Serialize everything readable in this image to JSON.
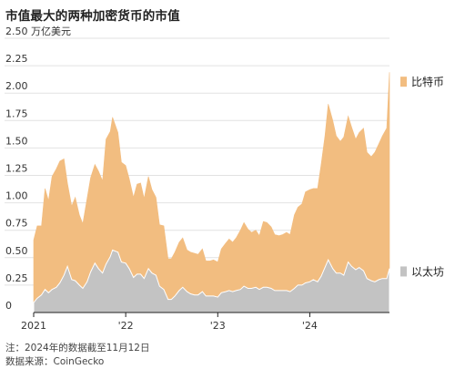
{
  "title": "市值最大的两种加密货币的市值",
  "note": "注：2024年的数据截至11月12日",
  "source": "数据来源：CoinGecko",
  "chart_data": {
    "type": "area",
    "stacked": true,
    "title": "市值最大的两种加密货币的市值",
    "y_unit_label": "2.50 万亿美元",
    "ylim": [
      0,
      2.5
    ],
    "y_ticks": [
      {
        "value": 0,
        "label": "0"
      },
      {
        "value": 0.25,
        "label": "0.25"
      },
      {
        "value": 0.5,
        "label": "0.50"
      },
      {
        "value": 0.75,
        "label": "0.75"
      },
      {
        "value": 1.0,
        "label": "1.00"
      },
      {
        "value": 1.25,
        "label": "1.25"
      },
      {
        "value": 1.5,
        "label": "1.50"
      },
      {
        "value": 1.75,
        "label": "1.75"
      },
      {
        "value": 2.0,
        "label": "2.00"
      },
      {
        "value": 2.25,
        "label": "2.25"
      },
      {
        "value": 2.5,
        "label": "2.50"
      }
    ],
    "x_ticks": [
      {
        "value": "2021-01-01",
        "label": "2021"
      },
      {
        "value": "2022-01-01",
        "label": "'22"
      },
      {
        "value": "2023-01-01",
        "label": "'23"
      },
      {
        "value": "2024-01-01",
        "label": "'24"
      }
    ],
    "xlim": [
      "2021-01-01",
      "2024-11-12"
    ],
    "grid": true,
    "legend": "right, labels at series",
    "colors": {
      "bitcoin": "#f2bd80",
      "ethereum": "#c3c3c3",
      "baseline": "#222222",
      "grid": "#e2e2e2"
    },
    "x": [
      "2021-01-01",
      "2021-01-15",
      "2021-02-01",
      "2021-02-15",
      "2021-03-01",
      "2021-03-15",
      "2021-04-01",
      "2021-04-15",
      "2021-05-01",
      "2021-05-15",
      "2021-06-01",
      "2021-06-15",
      "2021-07-01",
      "2021-07-15",
      "2021-08-01",
      "2021-08-15",
      "2021-09-01",
      "2021-09-15",
      "2021-10-01",
      "2021-10-15",
      "2021-11-01",
      "2021-11-10",
      "2021-12-01",
      "2021-12-15",
      "2022-01-01",
      "2022-01-15",
      "2022-02-01",
      "2022-02-15",
      "2022-03-01",
      "2022-03-15",
      "2022-04-01",
      "2022-04-15",
      "2022-05-01",
      "2022-05-15",
      "2022-06-01",
      "2022-06-18",
      "2022-07-01",
      "2022-07-15",
      "2022-08-01",
      "2022-08-15",
      "2022-09-01",
      "2022-09-15",
      "2022-10-01",
      "2022-10-15",
      "2022-11-01",
      "2022-11-15",
      "2022-12-01",
      "2022-12-15",
      "2023-01-01",
      "2023-01-15",
      "2023-02-01",
      "2023-02-15",
      "2023-03-01",
      "2023-03-15",
      "2023-04-01",
      "2023-04-15",
      "2023-05-01",
      "2023-05-15",
      "2023-06-01",
      "2023-06-15",
      "2023-07-01",
      "2023-07-15",
      "2023-08-01",
      "2023-08-15",
      "2023-09-01",
      "2023-09-15",
      "2023-10-01",
      "2023-10-15",
      "2023-11-01",
      "2023-11-15",
      "2023-12-01",
      "2023-12-15",
      "2024-01-01",
      "2024-01-15",
      "2024-02-01",
      "2024-02-15",
      "2024-03-01",
      "2024-03-14",
      "2024-04-01",
      "2024-04-15",
      "2024-05-01",
      "2024-05-15",
      "2024-06-01",
      "2024-06-15",
      "2024-07-01",
      "2024-07-15",
      "2024-08-01",
      "2024-08-15",
      "2024-09-01",
      "2024-09-15",
      "2024-10-01",
      "2024-10-15",
      "2024-11-01",
      "2024-11-12"
    ],
    "series": [
      {
        "name": "比特币",
        "values": [
          0.57,
          0.66,
          0.63,
          0.92,
          0.84,
          1.03,
          1.08,
          1.11,
          1.06,
          0.76,
          0.67,
          0.76,
          0.64,
          0.59,
          0.76,
          0.86,
          0.9,
          0.89,
          0.84,
          1.14,
          1.14,
          1.21,
          1.09,
          0.91,
          0.89,
          0.82,
          0.73,
          0.82,
          0.83,
          0.73,
          0.84,
          0.76,
          0.71,
          0.56,
          0.58,
          0.37,
          0.37,
          0.4,
          0.44,
          0.45,
          0.38,
          0.38,
          0.38,
          0.37,
          0.39,
          0.32,
          0.32,
          0.33,
          0.32,
          0.4,
          0.44,
          0.47,
          0.45,
          0.48,
          0.54,
          0.58,
          0.54,
          0.51,
          0.52,
          0.49,
          0.6,
          0.59,
          0.56,
          0.51,
          0.5,
          0.51,
          0.53,
          0.52,
          0.67,
          0.71,
          0.74,
          0.83,
          0.84,
          0.83,
          0.85,
          1.02,
          1.2,
          1.42,
          1.35,
          1.25,
          1.2,
          1.26,
          1.33,
          1.27,
          1.19,
          1.23,
          1.3,
          1.15,
          1.13,
          1.18,
          1.24,
          1.3,
          1.37,
          1.79
        ]
      },
      {
        "name": "以太坊",
        "values": [
          0.09,
          0.13,
          0.16,
          0.21,
          0.18,
          0.21,
          0.23,
          0.27,
          0.34,
          0.42,
          0.3,
          0.29,
          0.25,
          0.22,
          0.28,
          0.37,
          0.45,
          0.4,
          0.36,
          0.44,
          0.51,
          0.57,
          0.55,
          0.46,
          0.45,
          0.4,
          0.32,
          0.35,
          0.35,
          0.31,
          0.4,
          0.36,
          0.34,
          0.24,
          0.21,
          0.12,
          0.12,
          0.15,
          0.2,
          0.23,
          0.19,
          0.17,
          0.16,
          0.16,
          0.19,
          0.15,
          0.15,
          0.15,
          0.14,
          0.18,
          0.19,
          0.2,
          0.19,
          0.2,
          0.21,
          0.24,
          0.22,
          0.22,
          0.23,
          0.21,
          0.23,
          0.23,
          0.22,
          0.2,
          0.2,
          0.2,
          0.2,
          0.19,
          0.22,
          0.25,
          0.25,
          0.27,
          0.28,
          0.3,
          0.28,
          0.33,
          0.41,
          0.48,
          0.4,
          0.36,
          0.36,
          0.34,
          0.46,
          0.42,
          0.39,
          0.41,
          0.38,
          0.31,
          0.29,
          0.28,
          0.3,
          0.31,
          0.31,
          0.4
        ]
      }
    ]
  }
}
